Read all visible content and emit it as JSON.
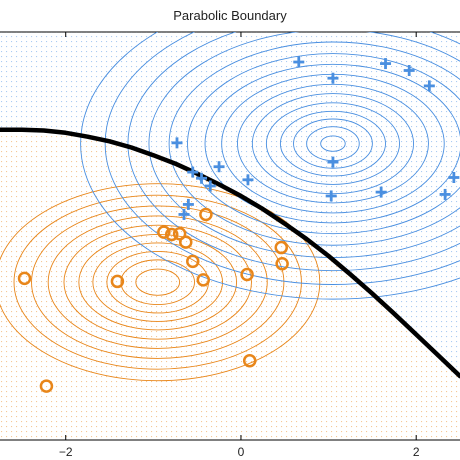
{
  "chart_data": {
    "type": "scatter",
    "title": "Parabolic Boundary",
    "xlabel": "",
    "ylabel": "",
    "xlim": [
      -2.75,
      2.5
    ],
    "ylim": [
      -2.55,
      2.75
    ],
    "x_ticks": [
      -2,
      0,
      2
    ],
    "x_tick_labels": [
      "−2",
      "0",
      "2"
    ],
    "grid": false,
    "legend": "none",
    "background": "dotted mesh colored by class region (orange below boundary, blue above)",
    "series": [
      {
        "marker": "circle",
        "color": "#E8861A",
        "points": [
          [
            -2.47,
            -0.45
          ],
          [
            -2.22,
            -1.85
          ],
          [
            -1.41,
            -0.49
          ],
          [
            -0.88,
            0.15
          ],
          [
            -0.79,
            0.12
          ],
          [
            -0.7,
            0.13
          ],
          [
            -0.63,
            0.02
          ],
          [
            -0.55,
            -0.23
          ],
          [
            -0.4,
            0.38
          ],
          [
            -0.43,
            -0.47
          ],
          [
            0.07,
            -0.4
          ],
          [
            0.1,
            -1.52
          ],
          [
            0.47,
            -0.26
          ],
          [
            0.46,
            -0.05
          ]
        ]
      },
      {
        "marker": "plus",
        "color": "#4A8FE0",
        "points": [
          [
            -0.73,
            1.31
          ],
          [
            -0.55,
            0.93
          ],
          [
            -0.45,
            0.85
          ],
          [
            -0.6,
            0.51
          ],
          [
            -0.35,
            0.75
          ],
          [
            -0.25,
            1.0
          ],
          [
            0.08,
            0.83
          ],
          [
            -0.65,
            0.38
          ],
          [
            0.66,
            2.36
          ],
          [
            1.05,
            2.15
          ],
          [
            1.05,
            1.06
          ],
          [
            1.65,
            2.34
          ],
          [
            1.92,
            2.25
          ],
          [
            2.15,
            2.05
          ],
          [
            1.6,
            0.67
          ],
          [
            1.03,
            0.62
          ],
          [
            2.33,
            0.64
          ],
          [
            2.43,
            0.86
          ]
        ]
      }
    ],
    "decision_boundary": {
      "label": "",
      "color": "#000000",
      "points": [
        [
          -2.75,
          1.48
        ],
        [
          -2.5,
          1.48
        ],
        [
          -2.25,
          1.47
        ],
        [
          -2.0,
          1.44
        ],
        [
          -1.75,
          1.39
        ],
        [
          -1.5,
          1.33
        ],
        [
          -1.25,
          1.25
        ],
        [
          -1.0,
          1.15
        ],
        [
          -0.75,
          1.04
        ],
        [
          -0.5,
          0.91
        ],
        [
          -0.25,
          0.77
        ],
        [
          0.0,
          0.62
        ],
        [
          0.25,
          0.45
        ],
        [
          0.5,
          0.26
        ],
        [
          0.75,
          0.06
        ],
        [
          1.0,
          -0.16
        ],
        [
          1.25,
          -0.4
        ],
        [
          1.5,
          -0.65
        ],
        [
          1.75,
          -0.91
        ],
        [
          2.0,
          -1.18
        ],
        [
          2.25,
          -1.45
        ],
        [
          2.5,
          -1.72
        ]
      ]
    },
    "contours": [
      {
        "class": "orange",
        "color": "#E8861A",
        "center": [
          -0.95,
          -0.5
        ],
        "semi_axes": [
          [
            0.25,
            0.17
          ],
          [
            0.42,
            0.29
          ],
          [
            0.58,
            0.4
          ],
          [
            0.74,
            0.51
          ],
          [
            0.9,
            0.62
          ],
          [
            1.07,
            0.74
          ],
          [
            1.25,
            0.86
          ],
          [
            1.44,
            0.99
          ],
          [
            1.64,
            1.13
          ],
          [
            1.85,
            1.28
          ]
        ]
      },
      {
        "class": "blue",
        "color": "#4A8FE0",
        "center": [
          1.05,
          1.3
        ],
        "semi_axes": [
          [
            0.14,
            0.1
          ],
          [
            0.3,
            0.22
          ],
          [
            0.45,
            0.32
          ],
          [
            0.6,
            0.42
          ],
          [
            0.76,
            0.53
          ],
          [
            0.92,
            0.65
          ],
          [
            1.09,
            0.77
          ],
          [
            1.27,
            0.9
          ],
          [
            1.46,
            1.03
          ],
          [
            1.66,
            1.17
          ],
          [
            1.87,
            1.32
          ],
          [
            2.1,
            1.48
          ],
          [
            2.34,
            1.65
          ],
          [
            2.6,
            1.83
          ],
          [
            2.88,
            2.02
          ]
        ]
      }
    ]
  }
}
